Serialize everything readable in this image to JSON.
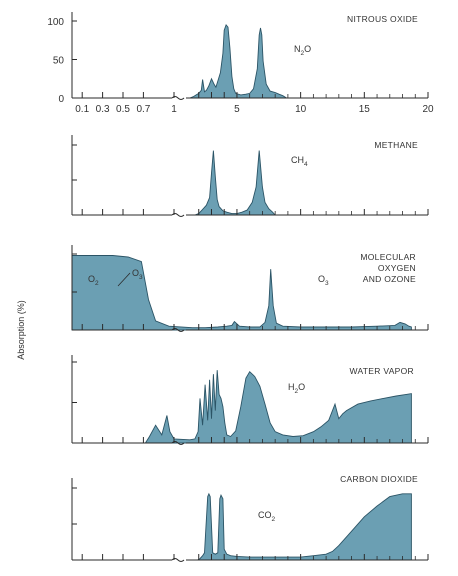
{
  "figure": {
    "y_axis_label": "Absorption (%)",
    "colors": {
      "fill": "#6b9fb3",
      "stroke": "#2b5466",
      "axis": "#2a2a2a",
      "text": "#333333"
    }
  },
  "chart_data": [
    {
      "type": "area",
      "title": "NITROUS OXIDE",
      "molecule_base": "N",
      "molecule_sub": "2",
      "molecule_tail": "O",
      "xlabel": "",
      "ylabel": "Absorption (%)",
      "x_tick_labels": [
        "0.1",
        "0.3",
        "0.5",
        "0.7",
        "1",
        "5",
        "10",
        "15",
        "20"
      ],
      "y_tick_labels": [
        "100",
        "50",
        "0"
      ],
      "xlim": [
        0,
        20
      ],
      "ylim": [
        0,
        100
      ],
      "grid": false,
      "x": [
        1.3,
        1.6,
        1.8,
        2.0,
        2.2,
        2.3,
        2.45,
        2.6,
        2.8,
        3.0,
        3.2,
        3.35,
        3.5,
        3.7,
        3.9,
        4.0,
        4.15,
        4.3,
        4.45,
        4.6,
        4.75,
        4.9,
        5.3,
        5.7,
        6.0,
        6.3,
        6.6,
        6.75,
        6.85,
        6.95,
        7.05,
        7.3,
        7.6,
        8.0,
        8.3,
        8.6,
        8.9
      ],
      "y": [
        0,
        2,
        4,
        6,
        10,
        24,
        8,
        10,
        16,
        25,
        18,
        14,
        22,
        33,
        58,
        88,
        95,
        92,
        65,
        28,
        12,
        6,
        4,
        5,
        6,
        12,
        38,
        82,
        91,
        82,
        48,
        18,
        9,
        7,
        5,
        3,
        0
      ]
    },
    {
      "type": "area",
      "title": "METHANE",
      "molecule_base": "CH",
      "molecule_sub": "4",
      "molecule_tail": "",
      "x_tick_labels": [],
      "y_tick_labels": [],
      "xlim": [
        0,
        20
      ],
      "ylim": [
        0,
        100
      ],
      "grid": false,
      "x": [
        1.7,
        2.0,
        2.3,
        2.6,
        2.85,
        3.0,
        3.15,
        3.3,
        3.45,
        3.6,
        3.9,
        4.2,
        4.6,
        5.0,
        5.4,
        5.8,
        6.2,
        6.5,
        6.75,
        7.0,
        7.2,
        7.5,
        7.8,
        8.0
      ],
      "y": [
        0,
        2,
        8,
        14,
        25,
        60,
        92,
        55,
        22,
        12,
        6,
        4,
        2,
        2,
        4,
        7,
        18,
        40,
        92,
        40,
        18,
        9,
        4,
        0
      ]
    },
    {
      "type": "area",
      "title": "MOLECULAR OXYGEN AND OZONE",
      "title_lines": [
        "MOLECULAR",
        "OXYGEN",
        "AND OZONE"
      ],
      "molecule_labels": [
        {
          "base": "O",
          "sub": "2"
        },
        {
          "base": "O",
          "sub": "3"
        },
        {
          "base": "O",
          "sub": "3"
        }
      ],
      "x_tick_labels": [],
      "y_tick_labels": [],
      "xlim": [
        0,
        20
      ],
      "ylim": [
        0,
        100
      ],
      "grid": false,
      "x": [
        0,
        0.25,
        0.4,
        0.55,
        0.68,
        0.75,
        0.82,
        0.95,
        1.5,
        2.5,
        3.5,
        4.2,
        4.6,
        4.8,
        5.2,
        6.0,
        6.8,
        7.2,
        7.5,
        7.65,
        7.85,
        8.1,
        8.6,
        10,
        12,
        14,
        16,
        17.4,
        17.8,
        18.2,
        18.5,
        18.7
      ],
      "y": [
        98,
        98,
        98,
        96,
        90,
        40,
        12,
        5,
        3,
        3,
        4,
        5,
        6,
        11,
        5,
        4,
        4,
        10,
        32,
        80,
        32,
        9,
        5,
        4,
        4,
        4,
        5,
        6,
        10,
        8,
        5,
        4
      ]
    },
    {
      "type": "area",
      "title": "WATER VAPOR",
      "molecule_base": "H",
      "molecule_sub": "2",
      "molecule_tail": "O",
      "x_tick_labels": [],
      "y_tick_labels": [],
      "xlim": [
        0,
        20
      ],
      "ylim": [
        0,
        100
      ],
      "grid": false,
      "x": [
        0.72,
        0.76,
        0.82,
        0.88,
        0.93,
        0.96,
        1.0,
        1.3,
        1.7,
        1.95,
        2.1,
        2.3,
        2.5,
        2.7,
        2.85,
        3.0,
        3.15,
        3.3,
        3.45,
        3.6,
        3.75,
        3.9,
        4.05,
        4.2,
        4.5,
        4.9,
        5.3,
        5.7,
        6.0,
        6.4,
        6.8,
        7.2,
        7.6,
        8.0,
        8.6,
        9.4,
        10.2,
        11.0,
        11.6,
        12.2,
        12.7,
        13.0,
        13.3,
        13.6,
        14.5,
        15.5,
        16.5,
        17.5,
        18.3,
        18.7
      ],
      "y": [
        0,
        8,
        22,
        10,
        34,
        14,
        5,
        4,
        5,
        14,
        55,
        22,
        72,
        28,
        78,
        30,
        85,
        40,
        90,
        60,
        55,
        45,
        25,
        10,
        8,
        15,
        45,
        80,
        88,
        82,
        70,
        48,
        25,
        14,
        10,
        8,
        9,
        14,
        20,
        28,
        48,
        30,
        36,
        40,
        48,
        52,
        55,
        58,
        60,
        61
      ]
    },
    {
      "type": "area",
      "title": "CARBON DIOXIDE",
      "molecule_base": "CO",
      "molecule_sub": "2",
      "molecule_tail": "",
      "x_tick_labels": [],
      "y_tick_labels": [],
      "xlim": [
        0,
        20
      ],
      "ylim": [
        0,
        100
      ],
      "grid": false,
      "x": [
        1.6,
        1.9,
        2.1,
        2.3,
        2.45,
        2.55,
        2.7,
        2.8,
        2.9,
        3.1,
        3.3,
        3.5,
        3.65,
        3.75,
        3.9,
        4.0,
        4.2,
        4.5,
        5.0,
        6.0,
        7.0,
        8.0,
        9.0,
        10.0,
        11.0,
        12.0,
        12.5,
        13.0,
        14.0,
        15.0,
        16.0,
        17.0,
        18.0,
        18.7
      ],
      "y": [
        0,
        0,
        2,
        6,
        10,
        40,
        88,
        92,
        88,
        10,
        8,
        10,
        85,
        90,
        85,
        15,
        8,
        6,
        5,
        4,
        4,
        4,
        4,
        4,
        6,
        8,
        12,
        20,
        40,
        60,
        75,
        88,
        92,
        92
      ]
    }
  ]
}
